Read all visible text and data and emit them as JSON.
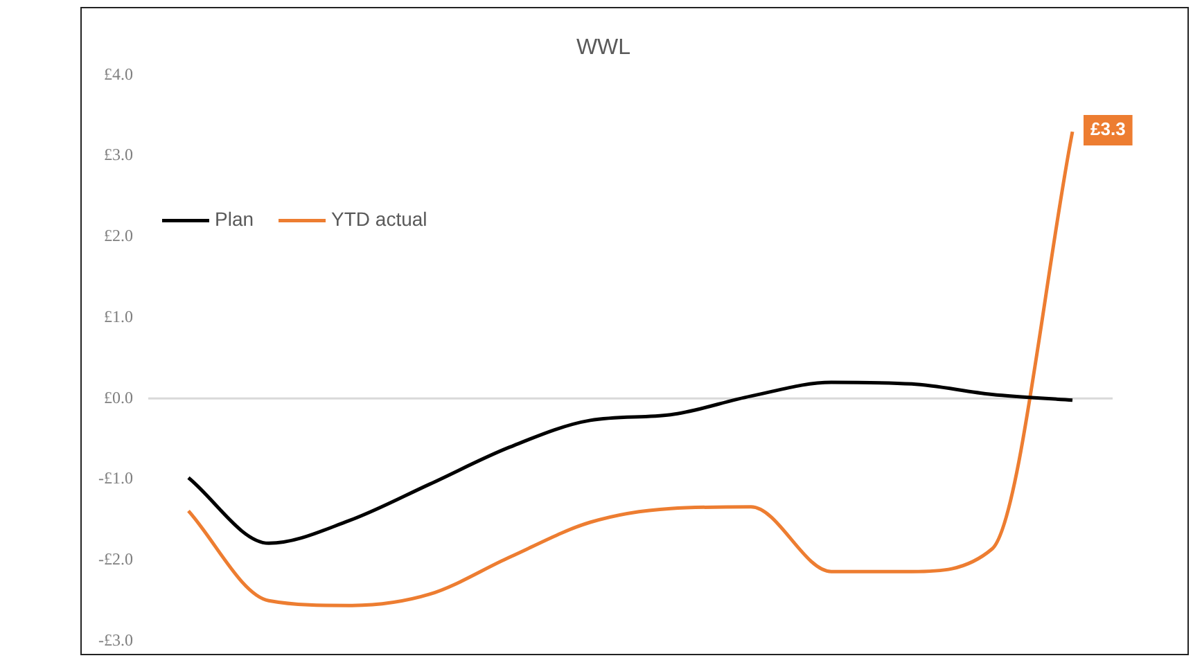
{
  "chart_data": {
    "type": "line",
    "title": "WWL",
    "categories": [
      null,
      null,
      null,
      null,
      null,
      null,
      null,
      null,
      null,
      null,
      null,
      null
    ],
    "series": [
      {
        "name": "Plan",
        "color": "#000000",
        "values": [
          -0.98,
          -1.79,
          -1.51,
          -1.06,
          -0.6,
          -0.27,
          -0.2,
          0.03,
          0.2,
          0.18,
          0.05,
          -0.02
        ]
      },
      {
        "name": "YTD actual",
        "color": "#ed7d31",
        "values": [
          -1.39,
          -2.5,
          -2.56,
          -2.42,
          -1.96,
          -1.53,
          -1.36,
          -1.34,
          -2.14,
          -2.14,
          -1.86,
          3.3
        ],
        "value_labels": [
          null,
          null,
          null,
          null,
          null,
          null,
          null,
          null,
          null,
          null,
          null,
          "£3.3"
        ]
      }
    ],
    "ylim": [
      -3,
      4
    ],
    "yticks": [
      {
        "value": 4,
        "label": "£4.0"
      },
      {
        "value": 3,
        "label": "£3.0"
      },
      {
        "value": 2,
        "label": "£2.0"
      },
      {
        "value": 1,
        "label": "£1.0"
      },
      {
        "value": 0,
        "label": "£0.0"
      },
      {
        "value": -1,
        "label": "-£1.0"
      },
      {
        "value": -2,
        "label": "-£2.0"
      },
      {
        "value": -3,
        "label": "-£3.0"
      }
    ],
    "ref_lines": [
      {
        "axis": "y",
        "value": 0,
        "color": "#d9d9d9"
      }
    ],
    "tick_labels": "y",
    "legend": "top left",
    "line_style": "solid",
    "marker": "none"
  }
}
